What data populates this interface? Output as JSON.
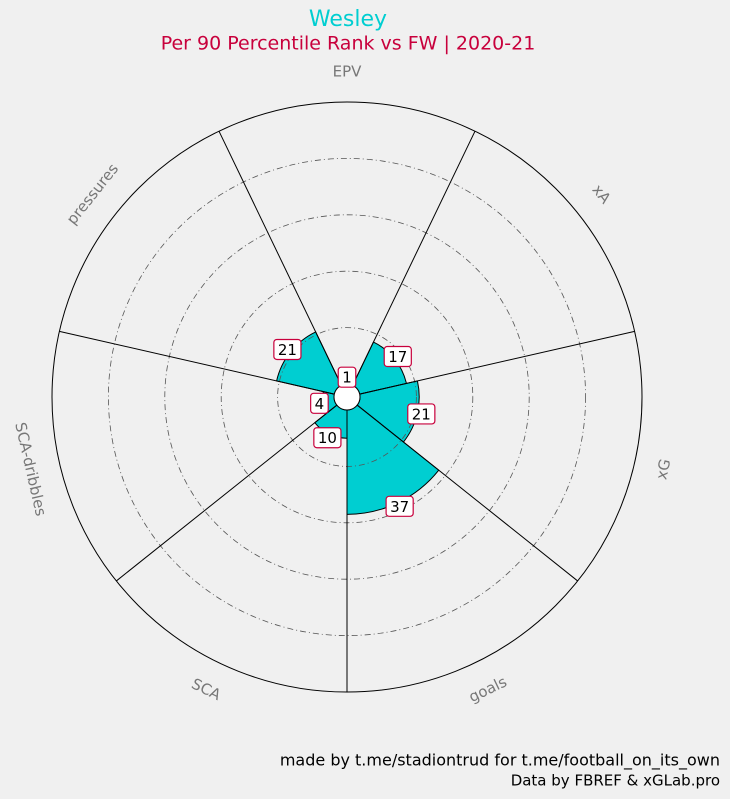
{
  "chart_data": {
    "type": "polar_bar",
    "title": "Wesley",
    "subtitle": "Per 90 Percentile Rank vs FW | 2020-21",
    "categories": [
      "EPV",
      "xA",
      "xG",
      "goals",
      "SCA",
      "SCA-dribbles",
      "pressures"
    ],
    "values": [
      1,
      17,
      21,
      37,
      10,
      4,
      21
    ],
    "color": "#00ced1",
    "title_color": "#00ced1",
    "subtitle_color": "#c8003c",
    "label_border_color": "#c8003c",
    "rlim": [
      0,
      100
    ],
    "rticks": [
      20,
      40,
      60,
      80
    ],
    "annotations": [
      "made by t.me/stadiontrud for t.me/football_on_its_own",
      "Data by FBREF & xGLab.pro"
    ]
  }
}
